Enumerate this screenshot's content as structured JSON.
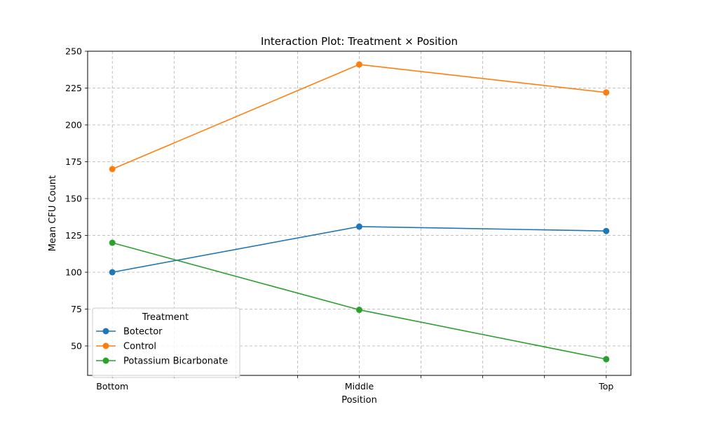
{
  "chart_data": {
    "type": "line",
    "title": "Interaction Plot: Treatment × Position",
    "xlabel": "Position",
    "ylabel": "Mean CFU Count",
    "categories": [
      "Bottom",
      "Middle",
      "Top"
    ],
    "ylim": [
      30,
      250
    ],
    "yticks": [
      50,
      75,
      100,
      125,
      150,
      175,
      200,
      225,
      250
    ],
    "grid": true,
    "legend": {
      "title": "Treatment",
      "placement": "lower-left"
    },
    "series": [
      {
        "name": "Botector",
        "color": "#1f77b4",
        "values": [
          100,
          131,
          128
        ]
      },
      {
        "name": "Control",
        "color": "#ff7f0e",
        "values": [
          170,
          241,
          222
        ]
      },
      {
        "name": "Potassium Bicarbonate",
        "color": "#2ca02c",
        "values": [
          120,
          74.5,
          41
        ]
      }
    ]
  }
}
